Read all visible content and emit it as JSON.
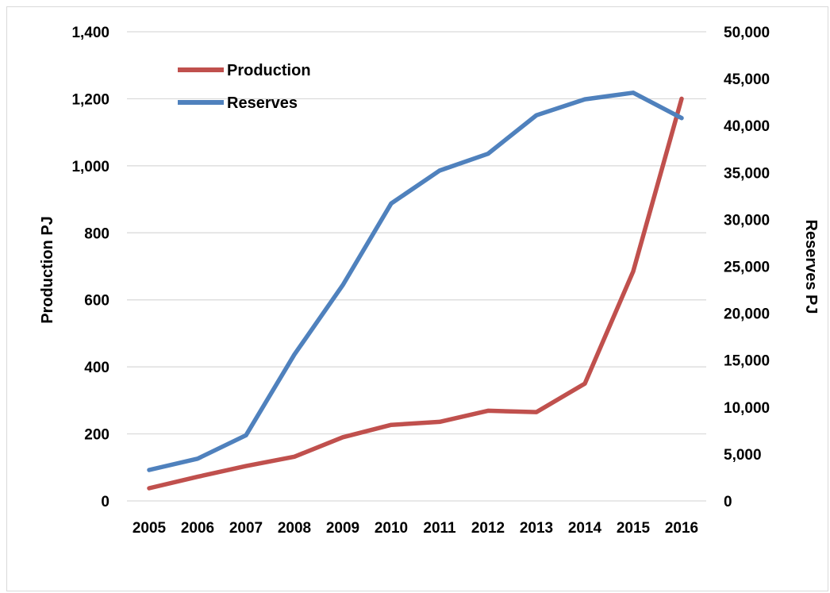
{
  "chart_data": {
    "type": "line",
    "x": [
      "2005",
      "2006",
      "2007",
      "2008",
      "2009",
      "2010",
      "2011",
      "2012",
      "2013",
      "2014",
      "2015",
      "2016"
    ],
    "series": [
      {
        "name": "Production",
        "axis": "left",
        "color": "#c0504d",
        "values": [
          38,
          72,
          104,
          132,
          190,
          227,
          236,
          269,
          265,
          350,
          685,
          1200
        ]
      },
      {
        "name": "Reserves",
        "axis": "right",
        "color": "#4f81bd",
        "values": [
          3300,
          4500,
          7000,
          15600,
          23000,
          31700,
          35200,
          37000,
          41100,
          42800,
          43500,
          40800
        ]
      }
    ],
    "y_left": {
      "label": "Production PJ",
      "range": [
        0,
        1400
      ],
      "ticks": [
        "0",
        "200",
        "400",
        "600",
        "800",
        "1,000",
        "1,200",
        "1,400"
      ]
    },
    "y_right": {
      "label": "Reserves PJ",
      "range": [
        0,
        50000
      ],
      "ticks": [
        "0",
        "5,000",
        "10,000",
        "15,000",
        "20,000",
        "25,000",
        "30,000",
        "35,000",
        "40,000",
        "45,000",
        "50,000"
      ]
    },
    "grid": true,
    "legend_position": "top-left"
  }
}
